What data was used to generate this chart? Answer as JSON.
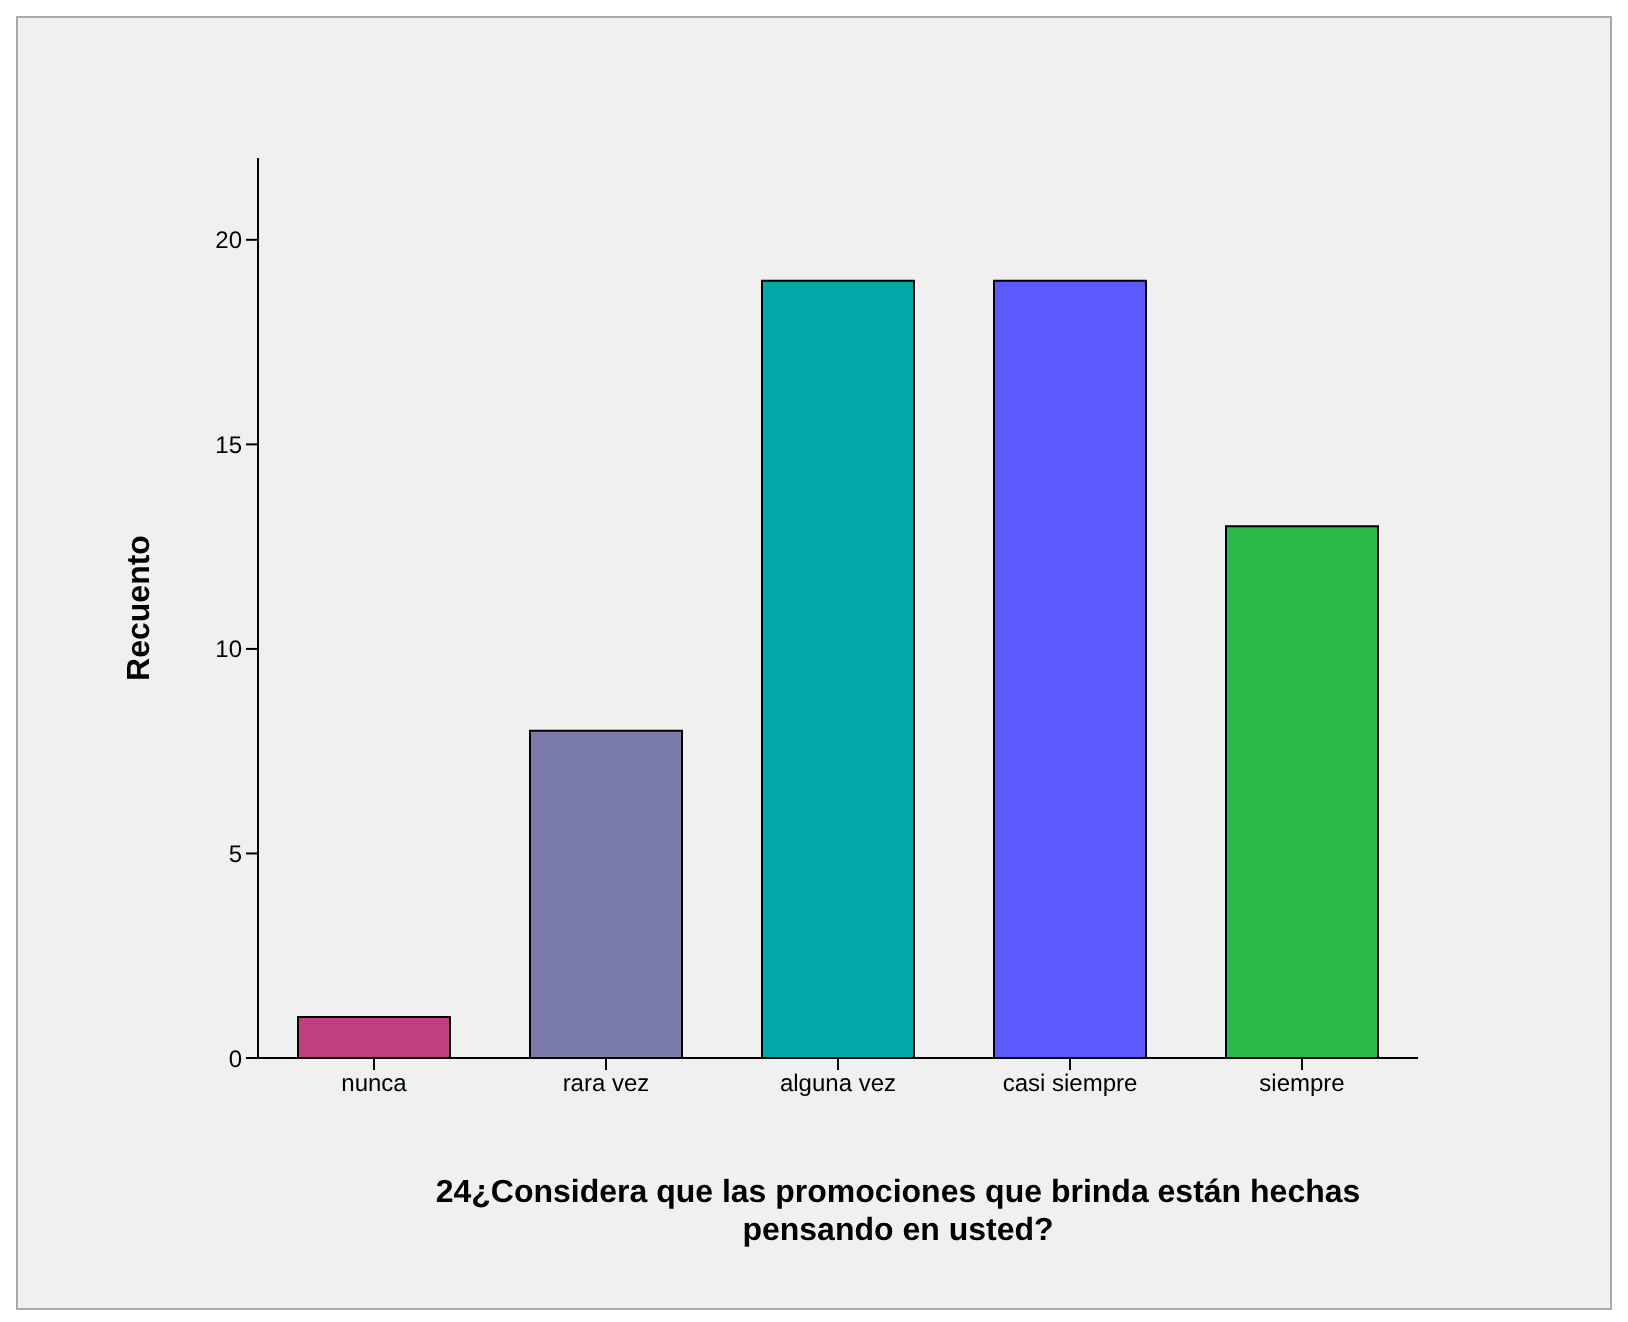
{
  "chart_data": {
    "type": "bar",
    "ylabel": "Recuento",
    "xlabel": "24¿Considera que las promociones que brinda están hechas pensando en usted?",
    "categories": [
      "nunca",
      "rara vez",
      "alguna vez",
      "casi siempre",
      "siempre"
    ],
    "values": [
      1,
      8,
      19,
      19,
      13
    ],
    "colors": [
      "#c0407f",
      "#7b7bab",
      "#00a8a8",
      "#5a5aff",
      "#2db84a"
    ],
    "ylim": [
      0,
      22
    ],
    "yticks": [
      0,
      5,
      10,
      15,
      20
    ],
    "grid": false,
    "legend": false
  }
}
